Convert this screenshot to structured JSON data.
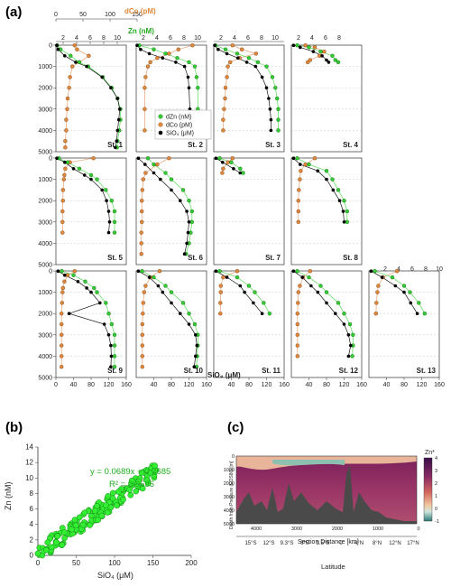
{
  "panel_labels": {
    "a": "(a)",
    "b": "(b)",
    "c": "(c)"
  },
  "panel_a": {
    "top_axis_dco": {
      "label": "dCo (pM)",
      "ticks": [
        "0",
        "50",
        "100",
        "150"
      ]
    },
    "top_axis_zn": {
      "label": "Zn (nM)",
      "ticks": [
        "2",
        "4",
        "6",
        "8",
        "10"
      ]
    },
    "bottom_axis": {
      "label": "SiO₄ (μM)",
      "ticks": [
        "0",
        "40",
        "80",
        "120",
        "160"
      ]
    },
    "depth_ticks": [
      "0",
      "1000",
      "2000",
      "3000",
      "4000",
      "5000"
    ],
    "legend": [
      {
        "label": "dZn (nM)",
        "color": "#33cc33"
      },
      {
        "label": "dCo (pM)",
        "color": "#e08a3c"
      },
      {
        "label": "SiO₄ (μM)",
        "color": "#000000"
      }
    ],
    "stations": [
      "St. 1",
      "St. 2",
      "St. 3",
      "St. 4",
      "St. 5",
      "St. 6",
      "St. 7",
      "St. 8",
      "St. 9",
      "St. 10",
      "St. 11",
      "St. 12",
      "St. 13"
    ]
  },
  "chart_data": [
    {
      "type": "line",
      "title": "",
      "xlabel": "SiO₄ (μM)",
      "ylabel": "Depth (m)",
      "xlim": [
        0,
        160
      ],
      "ylim": [
        5000,
        0
      ],
      "note": "Depth profiles of dZn (nM), dCo (pM) and SiO₄ (μM) at 13 stations",
      "profiles": [
        {
          "station": "St. 1",
          "depth": [
            10,
            200,
            500,
            800,
            1000,
            1500,
            2000,
            2500,
            3000,
            3500,
            4000,
            4500,
            4800
          ],
          "sio4": [
            2,
            5,
            20,
            45,
            70,
            105,
            125,
            140,
            145,
            143,
            140,
            138,
            135
          ],
          "dzn": [
            0.2,
            0.8,
            2.5,
            4,
            5.5,
            8,
            9.5,
            10.5,
            11,
            11,
            10.8,
            10.5,
            10.4
          ],
          "dco": [
            40,
            45,
            70,
            50,
            35,
            30,
            28,
            25,
            24,
            22,
            22,
            20,
            20
          ]
        },
        {
          "station": "St. 2",
          "depth": [
            10,
            200,
            400,
            600,
            800,
            1000,
            1500,
            2000,
            3000,
            4000
          ],
          "sio4": [
            2,
            10,
            30,
            60,
            90,
            110,
            118,
            120,
            122,
            120
          ],
          "dzn": [
            0.5,
            3,
            5,
            7,
            9,
            10,
            10.3,
            10.5,
            10.5,
            10.4
          ],
          "dco": [
            120,
            90,
            70,
            45,
            30,
            25,
            20,
            18,
            18,
            18
          ]
        },
        {
          "station": "St. 3",
          "depth": [
            10,
            200,
            400,
            600,
            800,
            1000,
            1500,
            2000,
            2500,
            3000,
            3500,
            4000
          ],
          "sio4": [
            2,
            10,
            30,
            55,
            75,
            95,
            110,
            120,
            125,
            128,
            130,
            130
          ],
          "dzn": [
            0.3,
            2,
            4,
            6,
            7.5,
            9,
            10,
            10.5,
            10.8,
            11,
            11,
            11
          ],
          "dco": [
            40,
            60,
            90,
            55,
            35,
            30,
            28,
            25,
            24,
            22,
            20,
            20
          ]
        },
        {
          "station": "St. 4",
          "depth": [
            10,
            100,
            300,
            500,
            700,
            800
          ],
          "sio4": [
            5,
            20,
            50,
            70,
            80,
            85
          ],
          "dzn": [
            1,
            3,
            5,
            7,
            7.5,
            8
          ],
          "dco": [
            30,
            50,
            70,
            60,
            40,
            35
          ]
        },
        {
          "station": "St. 5",
          "depth": [
            10,
            200,
            500,
            800,
            1000,
            1500,
            2000,
            2500,
            3000,
            3500
          ],
          "sio4": [
            2,
            20,
            40,
            65,
            80,
            105,
            115,
            120,
            122,
            120
          ],
          "dzn": [
            0.5,
            2,
            4,
            6,
            7,
            8.5,
            9.5,
            10,
            10,
            10
          ],
          "dco": [
            80,
            30,
            20,
            18,
            17,
            15,
            15,
            14,
            14,
            14
          ]
        },
        {
          "station": "St. 6",
          "depth": [
            10,
            300,
            700,
            1000,
            1500,
            2000,
            2500,
            3000,
            3500,
            4000,
            4500
          ],
          "sio4": [
            5,
            20,
            40,
            55,
            80,
            100,
            115,
            120,
            118,
            115,
            110
          ],
          "dzn": [
            2,
            3,
            5,
            6,
            8,
            9,
            9.5,
            9.5,
            9.3,
            9,
            8.5
          ],
          "dco": [
            70,
            45,
            20,
            15,
            13,
            12,
            12,
            12,
            11,
            11,
            11
          ]
        },
        {
          "station": "St. 7",
          "depth": [
            10,
            200,
            500,
            700
          ],
          "sio4": [
            5,
            20,
            45,
            60
          ],
          "dzn": [
            1,
            3,
            4.5,
            5
          ],
          "dco": [
            40,
            30,
            20,
            18
          ]
        },
        {
          "station": "St. 8",
          "depth": [
            10,
            300,
            600,
            1000,
            1500,
            2000,
            2500,
            3000
          ],
          "sio4": [
            5,
            20,
            60,
            80,
            95,
            110,
            118,
            120
          ],
          "dzn": [
            1,
            3,
            6,
            7,
            8,
            9,
            9.5,
            9.5
          ],
          "dco": [
            50,
            30,
            20,
            18,
            16,
            15,
            15,
            15
          ]
        },
        {
          "station": "St. 9",
          "depth": [
            10,
            200,
            500,
            800,
            1000,
            1500,
            2000,
            2500,
            3000,
            3500,
            4000,
            4500
          ],
          "sio4": [
            5,
            20,
            50,
            70,
            80,
            100,
            30,
            110,
            120,
            125,
            126,
            125
          ],
          "dzn": [
            1,
            3,
            5,
            6.5,
            7,
            8.5,
            9,
            9.5,
            10,
            10,
            10,
            10
          ],
          "dco": [
            40,
            25,
            18,
            15,
            14,
            13,
            12,
            12,
            12,
            12,
            12,
            12
          ]
        },
        {
          "station": "St. 10",
          "depth": [
            10,
            300,
            700,
            1000,
            1500,
            2000,
            2500,
            3000,
            3500,
            4000,
            4500
          ],
          "sio4": [
            5,
            30,
            50,
            60,
            80,
            100,
            120,
            135,
            138,
            135,
            132
          ],
          "dzn": [
            1,
            3,
            5,
            6,
            8,
            9,
            10,
            10.5,
            10.5,
            10.4,
            10.3
          ],
          "dco": [
            50,
            30,
            20,
            17,
            15,
            14,
            13,
            13,
            13,
            13,
            13
          ]
        },
        {
          "station": "St. 11",
          "depth": [
            10,
            300,
            700,
            1000,
            1500,
            2000
          ],
          "sio4": [
            5,
            30,
            60,
            70,
            90,
            110
          ],
          "dzn": [
            1,
            4,
            6,
            7,
            8.5,
            9.5
          ],
          "dco": [
            50,
            20,
            15,
            15,
            14,
            14
          ]
        },
        {
          "station": "St. 12",
          "depth": [
            10,
            300,
            700,
            1000,
            1500,
            2000,
            2500,
            3000,
            3500,
            4000
          ],
          "sio4": [
            5,
            25,
            45,
            60,
            80,
            100,
            120,
            130,
            135,
            130
          ],
          "dzn": [
            1,
            3,
            5,
            6,
            8,
            9,
            10,
            10.5,
            10.5,
            10.4
          ],
          "dco": [
            40,
            25,
            18,
            15,
            14,
            13,
            13,
            13,
            13,
            13
          ]
        },
        {
          "station": "St. 13",
          "depth": [
            10,
            300,
            700,
            1000,
            1500,
            2000
          ],
          "sio4": [
            5,
            30,
            60,
            80,
            95,
            110
          ],
          "dzn": [
            1,
            4,
            6,
            7,
            8.5,
            9.5
          ],
          "dco": [
            60,
            30,
            20,
            18,
            16,
            15
          ]
        }
      ]
    },
    {
      "type": "scatter",
      "title": "",
      "xlabel": "SiO₄ (μM)",
      "ylabel": "Zn (nM)",
      "xlim": [
        0,
        200
      ],
      "ylim": [
        0,
        14
      ],
      "xticks": [
        "0",
        "50",
        "100",
        "150",
        "200"
      ],
      "yticks": [
        "0",
        "2",
        "4",
        "6",
        "8",
        "10",
        "12",
        "14"
      ],
      "annotations": [
        "y = 0.0689x + 0.2685",
        "R² = 0.9596"
      ],
      "fit": {
        "slope": 0.0689,
        "intercept": 0.2685
      },
      "color": "#33cc33"
    },
    {
      "type": "heatmap",
      "title": "",
      "xlabel": "Latitude",
      "ylabel": "Depth from Pressure (EOS80) [m]",
      "x2label": "Section Distance [km]",
      "colorbar_label": "Zn*",
      "colorbar_ticks": [
        "4",
        "3",
        "2",
        "1",
        "0",
        "-1"
      ],
      "yticks": [
        "0",
        "1000",
        "2000",
        "3000",
        "4000",
        "5000"
      ],
      "distance_ticks": [
        "4000",
        "3000",
        "2000",
        "1000",
        "0"
      ],
      "latitude_ticks": [
        "15°S",
        "12°S",
        "9.3°S",
        "6°S",
        "3.5°S",
        "0",
        "4°N",
        "8°N",
        "12°N",
        "17°N"
      ]
    }
  ]
}
